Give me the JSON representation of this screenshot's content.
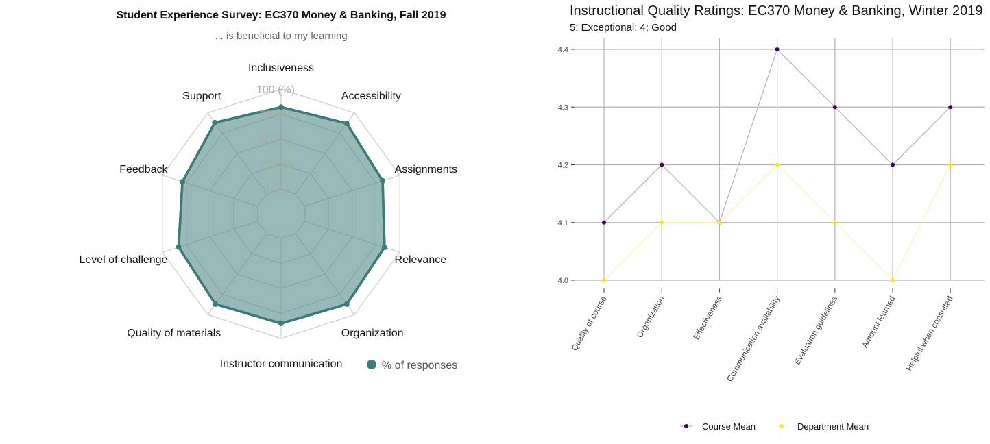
{
  "chart_data": [
    {
      "type": "radar",
      "title": "Student Experience Survey: EC370 Money & Banking, Fall 2019",
      "subtitle": "... is beneficial to my learning",
      "categories": [
        "Inclusiveness",
        "Accessibility",
        "Assignments",
        "Relevance",
        "Organization",
        "Instructor communication",
        "Quality of materials",
        "Level of challenge",
        "Feedback",
        "Support"
      ],
      "radial_ticks": [
        "0 (%)",
        "25 (%)",
        "50 (%)",
        "75 (%)",
        "100 (%)"
      ],
      "rlim": [
        0,
        100
      ],
      "series": [
        {
          "name": "% of responses",
          "values": [
            82,
            87,
            82,
            84,
            87,
            85,
            87,
            83,
            79,
            88
          ]
        }
      ],
      "legend_position": "bottom",
      "colors": {
        "series": "#3d7a78",
        "fill": "#96b8b7",
        "grid": "#cccccc",
        "tick_text": "#aaaaaa"
      }
    },
    {
      "type": "line",
      "title": "Instructional Quality Ratings: EC370 Money & Banking, Winter 2019",
      "subtitle": "5: Exceptional; 4: Good",
      "categories": [
        "Quality of course",
        "Organization",
        "Effectiveness",
        "Communication availability",
        "Evaluation guidelines",
        "Amount learned",
        "Helpful when consulted"
      ],
      "ylim": [
        4.0,
        4.4
      ],
      "yticks": [
        "4.0",
        "4.1",
        "4.2",
        "4.3",
        "4.4"
      ],
      "series": [
        {
          "name": "Course Mean",
          "values": [
            4.1,
            4.2,
            4.1,
            4.4,
            4.3,
            4.2,
            4.3
          ],
          "color": "#440154",
          "line_color": "#b3adc2"
        },
        {
          "name": "Department Mean",
          "values": [
            4.0,
            4.1,
            4.1,
            4.2,
            4.1,
            4.0,
            4.2
          ],
          "color": "#fde725",
          "line_color": "#fbf3b0"
        }
      ],
      "grid": true,
      "legend_position": "bottom"
    }
  ]
}
